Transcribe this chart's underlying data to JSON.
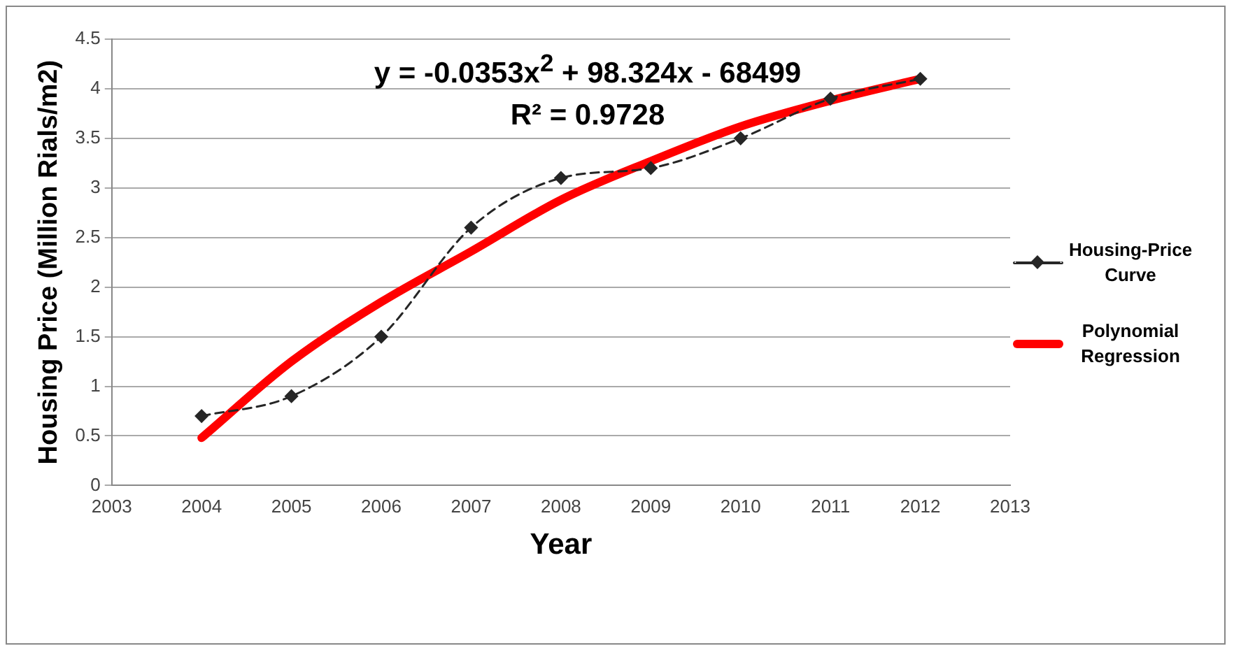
{
  "chart_data": {
    "type": "line",
    "xlabel": "Year",
    "ylabel": "Housing Price (Million Rials/m2)",
    "x": [
      2004,
      2005,
      2006,
      2007,
      2008,
      2009,
      2010,
      2011,
      2012
    ],
    "series": [
      {
        "name": "Housing-Price Curve",
        "color": "#262626",
        "values": [
          0.7,
          0.9,
          1.5,
          2.6,
          3.1,
          3.2,
          3.5,
          3.9,
          4.1
        ],
        "marker": "diamond",
        "line_style": "dashed"
      },
      {
        "name": "Polynomial Regression",
        "color": "#ff0000",
        "values": [
          0.48,
          1.25,
          1.85,
          2.36,
          2.88,
          3.27,
          3.62,
          3.88,
          4.1
        ],
        "marker": "none",
        "line_style": "solid"
      }
    ],
    "xlim": [
      2003,
      2013
    ],
    "xticks": [
      2003,
      2004,
      2005,
      2006,
      2007,
      2008,
      2009,
      2010,
      2011,
      2012,
      2013
    ],
    "ylim": [
      0,
      4.5
    ],
    "yticks": [
      0,
      0.5,
      1,
      1.5,
      2,
      2.5,
      3,
      3.5,
      4,
      4.5
    ],
    "grid": "y",
    "legend": "right",
    "annotations": [
      "y = -0.0353x$^{2}$ + 98.324x - 68499",
      "R² = 0.9728"
    ]
  }
}
